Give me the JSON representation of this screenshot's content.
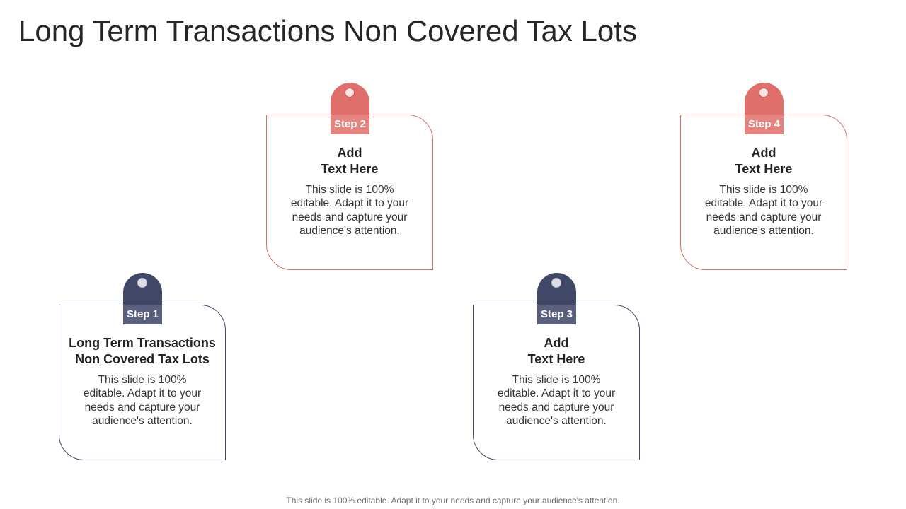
{
  "title": "Long Term Transactions Non Covered Tax Lots",
  "steps": [
    {
      "tag": "Step 1",
      "heading_line1": "Long Term Transactions",
      "heading_line2": "Non Covered Tax Lots",
      "description": "This slide is 100% editable. Adapt it to your needs and capture your audience's attention.",
      "color": "#414766"
    },
    {
      "tag": "Step 2",
      "heading_line1": "Add",
      "heading_line2": "Text Here",
      "description": "This slide is 100% editable. Adapt it to your needs and capture your audience's attention.",
      "color": "#e06f6b"
    },
    {
      "tag": "Step 3",
      "heading_line1": "Add",
      "heading_line2": "Text Here",
      "description": "This slide is 100% editable. Adapt it to your needs and capture your audience's attention.",
      "color": "#414766"
    },
    {
      "tag": "Step 4",
      "heading_line1": "Add",
      "heading_line2": "Text Here",
      "description": "This slide is 100% editable. Adapt it to your needs and capture your audience's attention.",
      "color": "#e06f6b"
    }
  ],
  "footer": "This slide is 100% editable. Adapt it to your needs and capture your audience's attention."
}
